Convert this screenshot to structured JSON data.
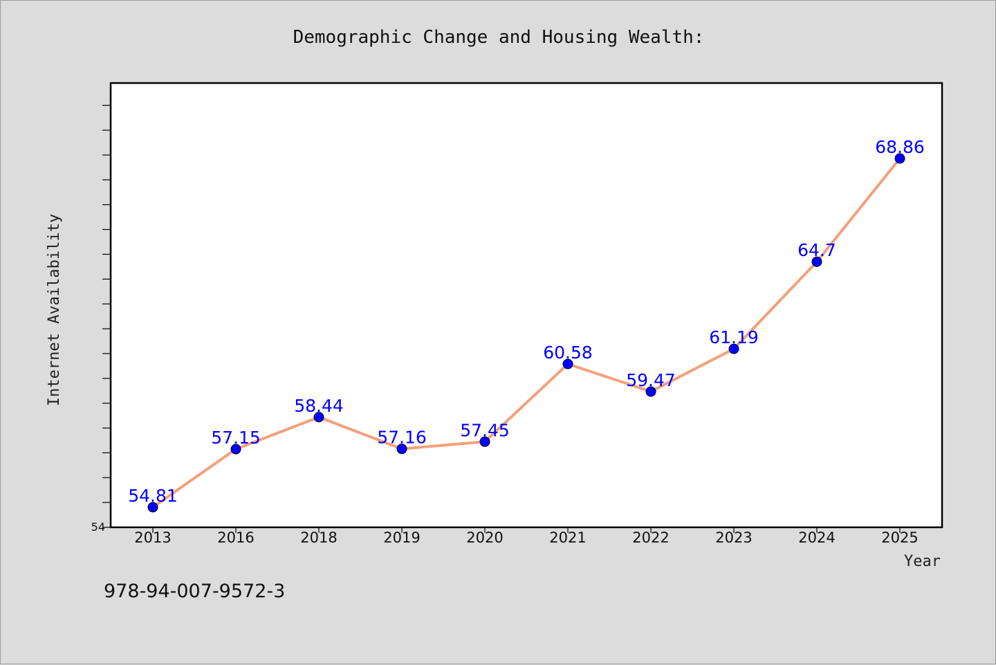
{
  "chart_data": {
    "type": "line",
    "title": "Demographic Change and Housing Wealth:",
    "xlabel": "Year",
    "ylabel": "Internet Availability",
    "categories": [
      "2013",
      "2016",
      "2018",
      "2019",
      "2020",
      "2021",
      "2022",
      "2023",
      "2024",
      "2025"
    ],
    "series": [
      {
        "values": [
          54.81,
          57.15,
          58.44,
          57.16,
          57.45,
          60.58,
          59.47,
          61.19,
          64.7,
          68.86
        ],
        "labels": [
          "54.81",
          "57.15",
          "58.44",
          "57.16",
          "57.45",
          "60.58",
          "59.47",
          "61.19",
          "64.7",
          "68.86"
        ]
      }
    ],
    "ylim": [
      54,
      71.9
    ],
    "yticks_labeled": [
      "54"
    ],
    "grid": false,
    "legend": "none",
    "colors": {
      "line": "#f4a07a",
      "marker": "#0000ff",
      "data_label": "#0000ff",
      "background": "#dcdcdc",
      "plot_bg": "#ffffff"
    }
  },
  "footer": {
    "isbn": "978-94-007-9572-3"
  }
}
